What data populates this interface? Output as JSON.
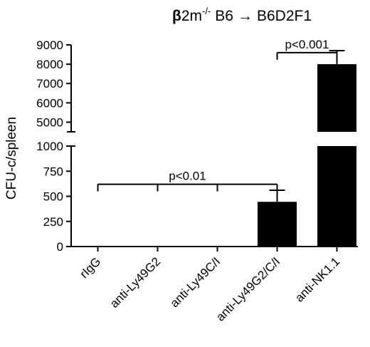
{
  "chart_data": {
    "type": "bar",
    "title": {
      "bold": "β",
      "base": "2m",
      "superscript": "-/-",
      "donor": "B6",
      "arrow": "→",
      "recipient": "B6D2F1"
    },
    "ylabel": "CFU-c/spleen",
    "xlabel": "",
    "categories": [
      "rIgG",
      "anti-Ly49G2",
      "anti-Ly49C/I",
      "anti-Ly49G2/C/I",
      "anti-NK1.1"
    ],
    "values": [
      0,
      3,
      2,
      445,
      8000
    ],
    "errors": [
      0,
      0,
      0,
      115,
      700
    ],
    "axis_break": true,
    "segments": [
      {
        "ylim": [
          0,
          1000
        ],
        "ticks": [
          0,
          250,
          500,
          750,
          1000
        ]
      },
      {
        "ylim": [
          4500,
          9000
        ],
        "ticks": [
          5000,
          6000,
          7000,
          8000,
          9000
        ]
      }
    ],
    "grid": false,
    "annotations": [
      {
        "label": "p<0.01",
        "from": 0,
        "to": 3,
        "level": 620,
        "segment": 0
      },
      {
        "label": "p<0.001",
        "from": 3,
        "to": 4,
        "level": 8600,
        "segment": 1
      }
    ],
    "colors": {
      "bars": "#000000"
    }
  }
}
